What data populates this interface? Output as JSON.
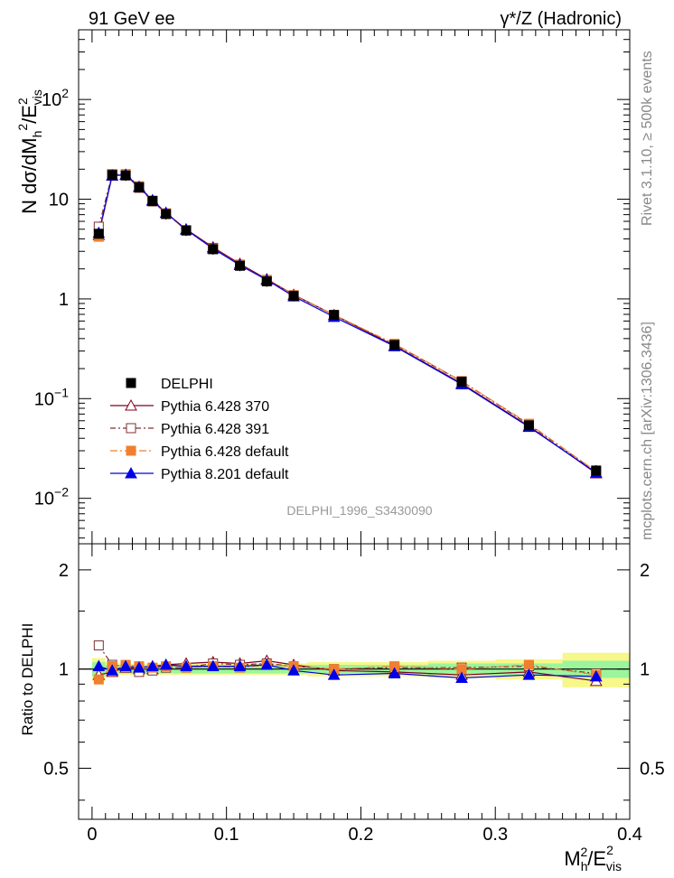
{
  "header": {
    "left_title": "91 GeV ee",
    "right_title": "γ*/Z (Hadronic)"
  },
  "side_labels": {
    "rivet": "Rivet 3.1.10, ≥ 500k events",
    "mcplots": "mcplots.cern.ch [arXiv:1306.3436]"
  },
  "analysis_id": "DELPHI_1996_S3430090",
  "colors": {
    "delphi": "#000000",
    "p370": "#7f0020",
    "p391": "#7f3030",
    "p6def": "#f07f30",
    "p8def": "#0000e8",
    "band_inner": "#9cf59c",
    "band_outer": "#f7f78a"
  },
  "chart_data": [
    {
      "id": "main",
      "type": "line",
      "yscale": "log",
      "ylabel": "N dσ/dM_h^2/E_vis^2",
      "ylabel_parts": {
        "base": "N dσ/dM",
        "sub1": "h",
        "sup1": "2",
        "mid": "/E",
        "sup2": "2",
        "sub2": "vis"
      },
      "xlim": [
        -0.01,
        0.4
      ],
      "ylim": [
        0.0035,
        500
      ],
      "y_ticks": [
        {
          "value": 0.01,
          "base": "10",
          "exp": "−2"
        },
        {
          "value": 0.1,
          "base": "10",
          "exp": "−1"
        },
        {
          "value": 1,
          "base": "1",
          "exp": ""
        },
        {
          "value": 10,
          "base": "10",
          "exp": ""
        },
        {
          "value": 100,
          "base": "10",
          "exp": "2"
        }
      ],
      "x": [
        0.005,
        0.015,
        0.025,
        0.035,
        0.045,
        0.055,
        0.07,
        0.09,
        0.11,
        0.13,
        0.15,
        0.18,
        0.225,
        0.275,
        0.325,
        0.375
      ],
      "series": [
        {
          "name": "DELPHI",
          "marker": "square-filled",
          "values": [
            4.5,
            17.5,
            17.3,
            13.2,
            9.6,
            7.1,
            4.85,
            3.15,
            2.15,
            1.5,
            1.07,
            0.69,
            0.345,
            0.148,
            0.054,
            0.019
          ]
        },
        {
          "name": "Pythia 6.428 370",
          "marker": "triangle-open",
          "values": [
            4.35,
            17.2,
            17.5,
            13.3,
            9.6,
            7.3,
            5.0,
            3.3,
            2.25,
            1.58,
            1.1,
            0.69,
            0.34,
            0.142,
            0.053,
            0.0178
          ]
        },
        {
          "name": "Pythia 6.428 391",
          "marker": "square-open",
          "values": [
            5.3,
            17.9,
            17.5,
            13.0,
            9.5,
            7.2,
            4.9,
            3.25,
            2.2,
            1.55,
            1.09,
            0.69,
            0.35,
            0.149,
            0.055,
            0.0184
          ]
        },
        {
          "name": "Pythia 6.428 default",
          "marker": "square-filled",
          "values": [
            4.2,
            17.9,
            17.9,
            13.5,
            9.7,
            7.2,
            4.9,
            3.2,
            2.18,
            1.55,
            1.09,
            0.69,
            0.355,
            0.15,
            0.056,
            0.0186
          ]
        },
        {
          "name": "Pythia 8.201 default",
          "marker": "triangle-filled",
          "values": [
            4.6,
            17.3,
            17.6,
            13.3,
            9.8,
            7.3,
            4.95,
            3.2,
            2.18,
            1.55,
            1.06,
            0.66,
            0.335,
            0.139,
            0.052,
            0.0181
          ]
        }
      ]
    },
    {
      "id": "ratio",
      "type": "line",
      "yscale": "log",
      "ylabel": "Ratio to DELPHI",
      "xlabel": "M_h^2/E_vis^2",
      "xlabel_parts": {
        "base": "M",
        "sub1": "h",
        "sup1": "2",
        "mid": "/E",
        "sup2": "2",
        "sub2": "vis"
      },
      "xlim": [
        -0.01,
        0.4
      ],
      "ylim": [
        0.35,
        2.4
      ],
      "y_ticks": [
        {
          "value": 0.5,
          "label": "0.5"
        },
        {
          "value": 1,
          "label": "1"
        },
        {
          "value": 2,
          "label": "2"
        }
      ],
      "x_ticks": [
        {
          "value": 0,
          "label": "0"
        },
        {
          "value": 0.1,
          "label": "0.1"
        },
        {
          "value": 0.2,
          "label": "0.2"
        },
        {
          "value": 0.3,
          "label": "0.3"
        },
        {
          "value": 0.4,
          "label": "0.4"
        }
      ],
      "bin_edges": [
        0.0,
        0.01,
        0.02,
        0.03,
        0.04,
        0.05,
        0.06,
        0.08,
        0.1,
        0.12,
        0.14,
        0.16,
        0.2,
        0.25,
        0.3,
        0.35,
        0.4
      ],
      "band_inner": [
        0.05,
        0.03,
        0.03,
        0.03,
        0.03,
        0.03,
        0.03,
        0.03,
        0.03,
        0.03,
        0.03,
        0.03,
        0.03,
        0.04,
        0.04,
        0.06
      ],
      "band_outer": [
        0.08,
        0.05,
        0.04,
        0.04,
        0.04,
        0.04,
        0.04,
        0.04,
        0.04,
        0.04,
        0.04,
        0.05,
        0.05,
        0.06,
        0.07,
        0.12
      ],
      "x": [
        0.005,
        0.015,
        0.025,
        0.035,
        0.045,
        0.055,
        0.07,
        0.09,
        0.11,
        0.13,
        0.15,
        0.18,
        0.225,
        0.275,
        0.325,
        0.375
      ],
      "series": [
        {
          "name": "Pythia 6.428 370",
          "marker": "triangle-open",
          "values": [
            0.96,
            0.98,
            1.01,
            1.0,
            1.0,
            1.03,
            1.04,
            1.05,
            1.04,
            1.06,
            1.03,
            0.99,
            0.98,
            0.96,
            0.98,
            0.92
          ]
        },
        {
          "name": "Pythia 6.428 391",
          "marker": "square-open",
          "values": [
            1.18,
            1.03,
            1.02,
            0.98,
            0.99,
            1.01,
            1.01,
            1.04,
            1.03,
            1.04,
            1.02,
            1.0,
            1.01,
            1.01,
            1.02,
            0.97
          ]
        },
        {
          "name": "Pythia 6.428 default",
          "marker": "square-filled",
          "values": [
            0.93,
            1.02,
            1.03,
            1.02,
            1.01,
            1.02,
            1.01,
            1.02,
            1.01,
            1.03,
            1.02,
            1.0,
            1.02,
            1.0,
            1.03,
            0.96
          ]
        },
        {
          "name": "Pythia 8.201 default",
          "marker": "triangle-filled",
          "values": [
            1.02,
            0.99,
            1.02,
            1.01,
            1.02,
            1.03,
            1.02,
            1.02,
            1.02,
            1.03,
            0.99,
            0.96,
            0.97,
            0.94,
            0.96,
            0.95
          ]
        }
      ]
    }
  ],
  "legend": {
    "position": "bottom-left",
    "entries": [
      {
        "label": "DELPHI",
        "key": "delphi"
      },
      {
        "label": "Pythia 6.428 370",
        "key": "p370"
      },
      {
        "label": "Pythia 6.428 391",
        "key": "p391"
      },
      {
        "label": "Pythia 6.428 default",
        "key": "p6def"
      },
      {
        "label": "Pythia 8.201 default",
        "key": "p8def"
      }
    ]
  }
}
